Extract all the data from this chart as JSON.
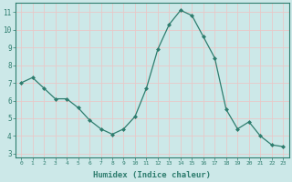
{
  "x": [
    0,
    1,
    2,
    3,
    4,
    5,
    6,
    7,
    8,
    9,
    10,
    11,
    12,
    13,
    14,
    15,
    16,
    17,
    18,
    19,
    20,
    21,
    22,
    23
  ],
  "y": [
    7.0,
    7.3,
    6.7,
    6.1,
    6.1,
    5.6,
    4.9,
    4.4,
    4.1,
    4.4,
    5.1,
    6.7,
    8.9,
    10.3,
    11.1,
    10.8,
    9.6,
    8.4,
    5.5,
    4.4,
    4.8,
    4.0,
    3.5,
    3.4
  ],
  "line_color": "#2e7d6e",
  "marker": "D",
  "marker_size": 2.0,
  "bg_color": "#cce8e8",
  "grid_color": "#ffffff",
  "xlabel": "Humidex (Indice chaleur)",
  "xlim": [
    -0.5,
    23.5
  ],
  "ylim": [
    2.8,
    11.5
  ],
  "yticks": [
    3,
    4,
    5,
    6,
    7,
    8,
    9,
    10,
    11
  ],
  "xticks": [
    0,
    1,
    2,
    3,
    4,
    5,
    6,
    7,
    8,
    9,
    10,
    11,
    12,
    13,
    14,
    15,
    16,
    17,
    18,
    19,
    20,
    21,
    22,
    23
  ],
  "tick_color": "#2e7d6e",
  "label_color": "#2e7d6e",
  "spine_color": "#2e7d6e",
  "grid_line_color": "#e8c8c8"
}
